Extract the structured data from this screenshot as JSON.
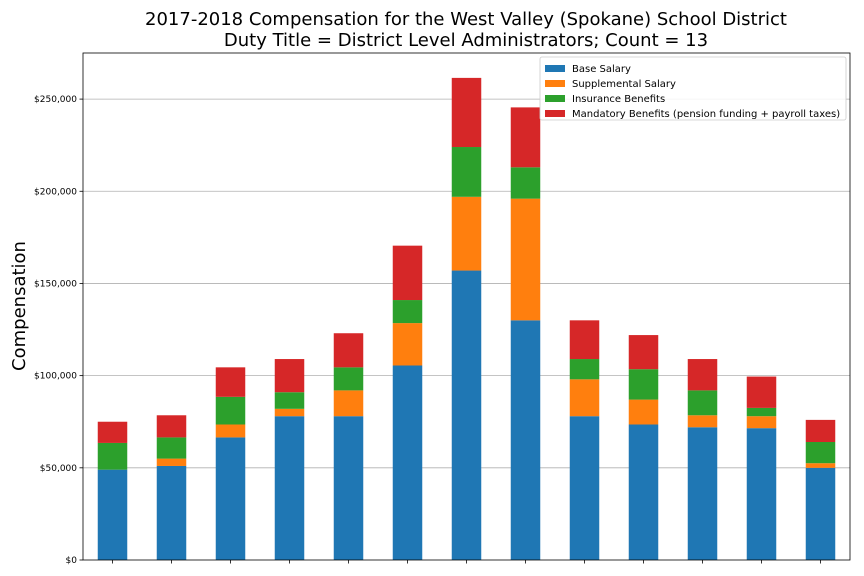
{
  "chart_data": {
    "type": "bar",
    "stacked": true,
    "title": "2017-2018 Compensation for the West Valley (Spokane) School District",
    "subtitle": "Duty Title = District Level Administrators; Count = 13",
    "xlabel": "",
    "ylabel": "Compensation",
    "ylim": [
      0,
      275000
    ],
    "yticks": [
      0,
      50000,
      100000,
      150000,
      200000,
      250000
    ],
    "ytick_labels": [
      "$0",
      "$50,000",
      "$100,000",
      "$150,000",
      "$200,000",
      "$250,000"
    ],
    "grid": "horizontal",
    "legend_position": "top-right",
    "categories_count": 13,
    "series": [
      {
        "name": "Base Salary",
        "color": "#1f77b4",
        "values": [
          49000,
          51000,
          66500,
          78000,
          78000,
          105500,
          157000,
          130000,
          78000,
          73500,
          72000,
          71500,
          50000
        ]
      },
      {
        "name": "Supplemental Salary",
        "color": "#ff7f0e",
        "values": [
          0,
          4000,
          7000,
          4000,
          14000,
          23000,
          40000,
          66000,
          20000,
          13500,
          6500,
          6500,
          2500
        ]
      },
      {
        "name": "Insurance Benefits",
        "color": "#2ca02c",
        "values": [
          14500,
          11500,
          15000,
          9000,
          12500,
          12500,
          27000,
          17000,
          11000,
          16500,
          13500,
          4500,
          11500
        ]
      },
      {
        "name": "Mandatory Benefits (pension funding + payroll taxes)",
        "color": "#d62728",
        "values": [
          11500,
          12000,
          16000,
          18000,
          18500,
          29500,
          37500,
          32500,
          21000,
          18500,
          17000,
          17000,
          12000
        ]
      }
    ]
  }
}
